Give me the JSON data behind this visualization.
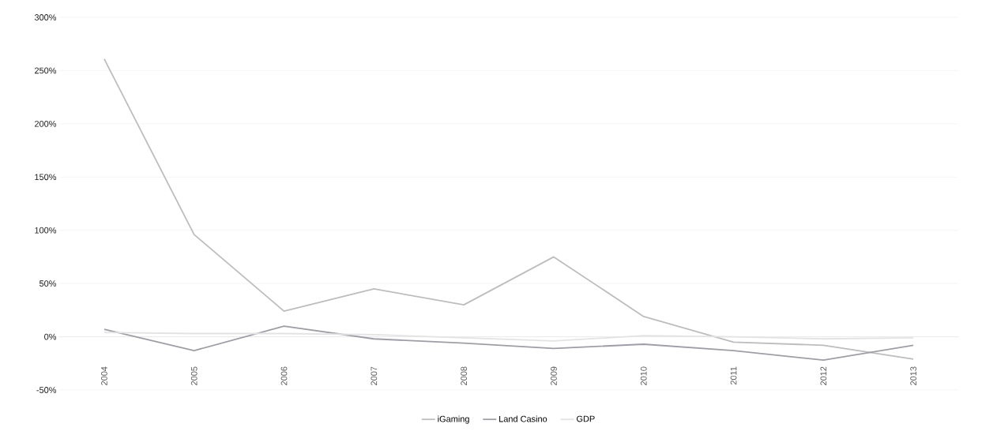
{
  "chart_data": {
    "type": "line",
    "categories": [
      "2004",
      "2005",
      "2006",
      "2007",
      "2008",
      "2009",
      "2010",
      "2011",
      "2012",
      "2013"
    ],
    "series": [
      {
        "name": "iGaming",
        "color": "#bdbdbd",
        "values": [
          261,
          96,
          24,
          45,
          30,
          75,
          19,
          -5,
          -8,
          -21
        ]
      },
      {
        "name": "Land Casino",
        "color": "#9e9ea8",
        "values": [
          7,
          -13,
          10,
          -2,
          -6,
          -11,
          -7,
          -13,
          -22,
          -8
        ]
      },
      {
        "name": "GDP",
        "color": "#e3e3e3",
        "values": [
          4,
          3,
          3,
          2,
          -1,
          -4,
          1,
          0,
          -2,
          -1
        ]
      }
    ],
    "ylim": [
      -50,
      300
    ],
    "yticks": [
      {
        "value": -50,
        "label": "-50%"
      },
      {
        "value": 0,
        "label": "0%"
      },
      {
        "value": 50,
        "label": "50%"
      },
      {
        "value": 100,
        "label": "100%"
      },
      {
        "value": 150,
        "label": "150%"
      },
      {
        "value": 200,
        "label": "200%"
      },
      {
        "value": 250,
        "label": "250%"
      },
      {
        "value": 300,
        "label": "300%"
      }
    ],
    "grid": "y",
    "legend": "bottom",
    "marker": "none",
    "line_style": "solid"
  }
}
